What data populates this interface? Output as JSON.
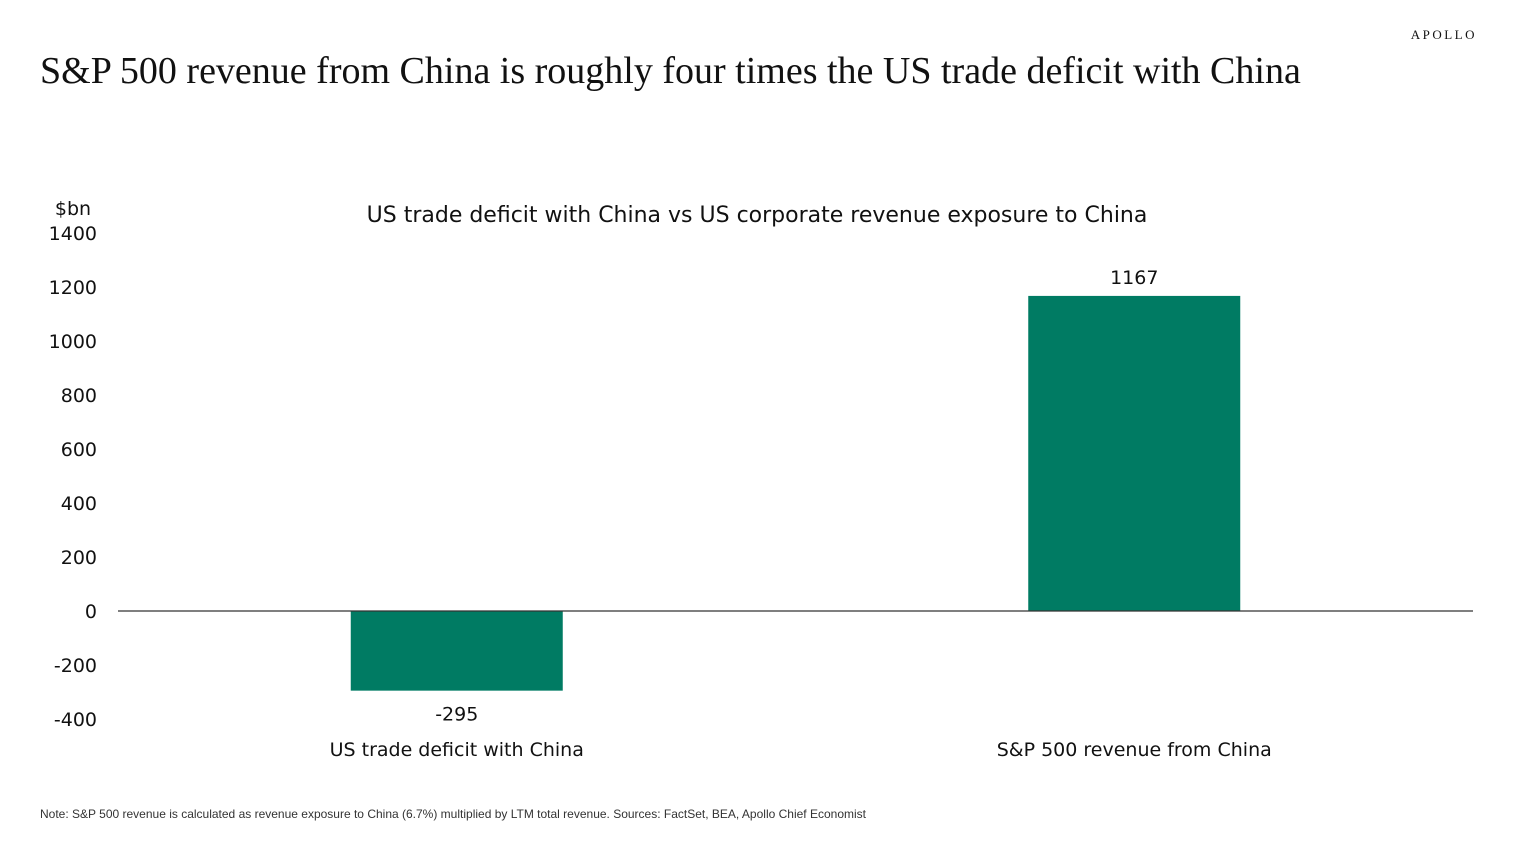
{
  "brand": "APOLLO",
  "headline": "S&P 500 revenue from China is roughly four times the US trade deficit with China",
  "note": "Note: S&P 500 revenue is calculated as revenue exposure to China (6.7%) multiplied by LTM total revenue. Sources: FactSet, BEA, Apollo Chief Economist",
  "colors": {
    "bar": "#007b63",
    "axis": "#333333"
  },
  "chart_data": {
    "type": "bar",
    "title": "US trade deficit with China vs US corporate revenue exposure to China",
    "ylabel": "$bn",
    "xlabel": "",
    "categories": [
      "US trade deficit with China",
      "S&P 500 revenue from China"
    ],
    "values": [
      -295,
      1167
    ],
    "data_labels": [
      "-295",
      "1167"
    ],
    "ylim": [
      -400,
      1400
    ],
    "yticks": [
      -400,
      -200,
      0,
      200,
      400,
      600,
      800,
      1000,
      1200,
      1400
    ],
    "grid": false,
    "legend": "none"
  }
}
